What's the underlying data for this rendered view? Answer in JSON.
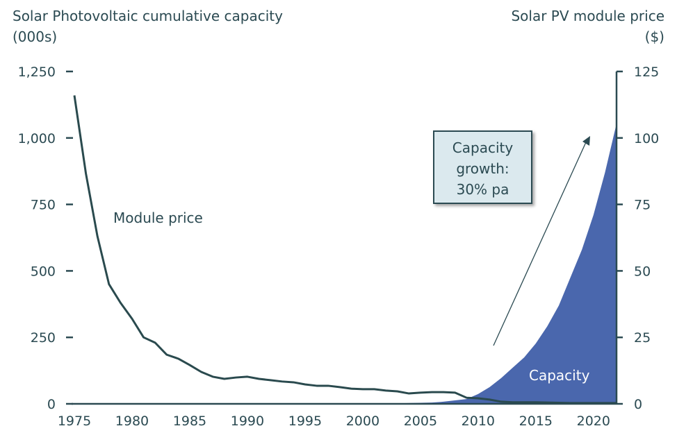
{
  "chart_data": {
    "type": "area+line",
    "left_title_line1": "Solar Photovoltaic cumulative capacity",
    "left_title_line2": "(000s)",
    "right_title_line1": "Solar PV module price",
    "right_title_line2": "($)",
    "x_ticks": [
      "1975",
      "1980",
      "1985",
      "1990",
      "1995",
      "2000",
      "2005",
      "2010",
      "2015",
      "2020"
    ],
    "x_tick_values": [
      1975,
      1980,
      1985,
      1990,
      1995,
      2000,
      2005,
      2010,
      2015,
      2020
    ],
    "xlim": [
      1975,
      2022
    ],
    "left_ticks": [
      "0",
      "250",
      "500",
      "750",
      "1,000",
      "1,250"
    ],
    "left_tick_values": [
      0,
      250,
      500,
      750,
      1000,
      1250
    ],
    "ylim_left": [
      0,
      1250
    ],
    "right_ticks": [
      "0",
      "25",
      "50",
      "75",
      "100",
      "125"
    ],
    "right_tick_values": [
      0,
      25,
      50,
      75,
      100,
      125
    ],
    "ylim_right": [
      0,
      125
    ],
    "x": [
      1975,
      1976,
      1977,
      1978,
      1979,
      1980,
      1981,
      1982,
      1983,
      1984,
      1985,
      1986,
      1987,
      1988,
      1989,
      1990,
      1991,
      1992,
      1993,
      1994,
      1995,
      1996,
      1997,
      1998,
      1999,
      2000,
      2001,
      2002,
      2003,
      2004,
      2005,
      2006,
      2007,
      2008,
      2009,
      2010,
      2011,
      2012,
      2013,
      2014,
      2015,
      2016,
      2017,
      2018,
      2019,
      2020,
      2021,
      2022
    ],
    "series": [
      {
        "name": "Capacity",
        "axis": "left",
        "kind": "area",
        "color": "#4a67ad",
        "values": [
          0,
          0,
          0,
          0,
          0,
          0,
          0,
          0,
          0,
          0,
          0,
          0,
          0,
          0,
          0,
          0,
          0,
          0,
          0,
          0,
          0,
          0,
          0,
          0,
          1,
          1,
          1,
          1,
          2,
          3,
          4,
          5,
          8,
          13,
          18,
          37,
          63,
          97,
          136,
          175,
          227,
          292,
          370,
          475,
          580,
          710,
          870,
          1054
        ]
      },
      {
        "name": "Module price",
        "axis": "right",
        "kind": "line",
        "color": "#2a4a4e",
        "values": [
          116,
          86.6,
          63,
          45,
          38,
          32,
          25,
          23,
          18.5,
          17,
          14.6,
          12,
          10.2,
          9.4,
          9.9,
          10.2,
          9.4,
          8.9,
          8.4,
          8.1,
          7.3,
          6.8,
          6.8,
          6.3,
          5.7,
          5.5,
          5.5,
          5,
          4.7,
          3.9,
          4.2,
          4.4,
          4.4,
          4.2,
          2.3,
          2.1,
          1.6,
          0.8,
          0.6,
          0.6,
          0.6,
          0.5,
          0.4,
          0.3,
          0.3,
          0.3,
          0.3,
          0.3
        ]
      }
    ],
    "labels": {
      "capacity": "Capacity",
      "price": "Module price"
    },
    "annotation": {
      "line1": "Capacity",
      "line2": "growth:",
      "line3": "30% pa"
    }
  }
}
